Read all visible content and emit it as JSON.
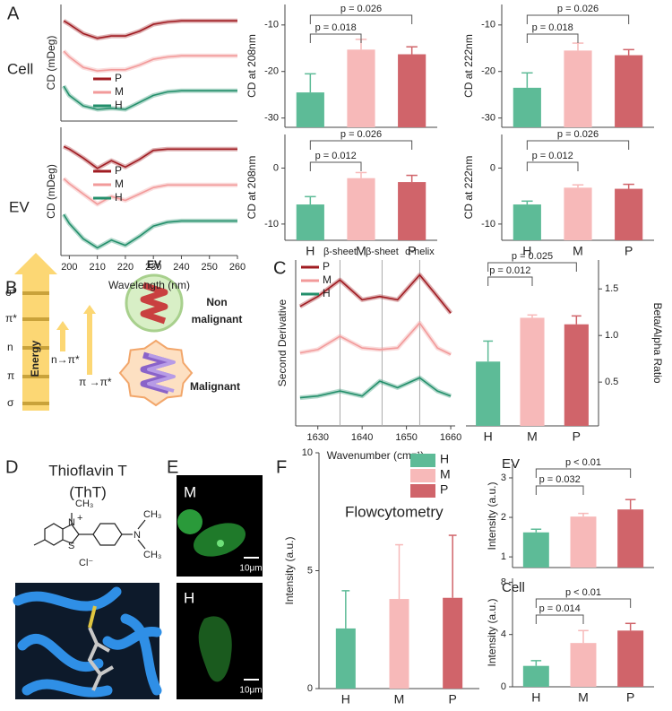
{
  "figure": {
    "panel_labels": [
      "A",
      "B",
      "C",
      "D",
      "E",
      "F"
    ],
    "row_labels": [
      "Cell",
      "EV"
    ],
    "energy": {
      "title": "Energy",
      "levels": [
        "σ*",
        "π*",
        "n",
        "π",
        "σ"
      ],
      "transitions": [
        "n→π*",
        "π →π*"
      ]
    },
    "ev_diagram": {
      "title": "EV",
      "non_malignant": [
        "Non",
        "malignant"
      ],
      "malignant": "Malignant"
    },
    "tht": {
      "name": "Thioflavin T",
      "abbr": "(ThT)",
      "atoms": [
        "CH₃",
        "N",
        "+",
        "S",
        "Cl⁻",
        "N",
        "CH₃",
        "CH₃"
      ]
    },
    "micrographs": [
      {
        "label": "M",
        "scale": "10μm"
      },
      {
        "label": "H",
        "scale": "10μm"
      }
    ]
  },
  "chart_data": [
    {
      "type": "line",
      "ylabel": "CD (mDeg)",
      "legend": "center left",
      "x": [
        198,
        200,
        205,
        210,
        215,
        220,
        225,
        230,
        235,
        240,
        245,
        250,
        255,
        260
      ],
      "xlim": [
        197,
        260
      ],
      "ylim": [
        0,
        10
      ],
      "series": [
        {
          "name": "P",
          "color": "#a01c22",
          "values": [
            8.6,
            8.3,
            7.5,
            7.1,
            7.3,
            7.3,
            7.7,
            8.3,
            8.5,
            8.6,
            8.6,
            8.6,
            8.6,
            8.6
          ]
        },
        {
          "name": "M",
          "color": "#f29a9a",
          "values": [
            6.0,
            5.5,
            4.6,
            4.3,
            4.4,
            4.4,
            4.8,
            5.3,
            5.5,
            5.6,
            5.6,
            5.6,
            5.6,
            5.6
          ]
        },
        {
          "name": "H",
          "color": "#238f6b",
          "values": [
            3.0,
            2.2,
            1.3,
            1.0,
            1.1,
            1.0,
            1.6,
            2.2,
            2.5,
            2.6,
            2.6,
            2.6,
            2.6,
            2.6
          ]
        }
      ]
    },
    {
      "type": "line",
      "ylabel": "CD (mDeg)",
      "xlabel": "Wavelength (nm)",
      "legend": "center left",
      "x": [
        198,
        200,
        205,
        210,
        215,
        220,
        225,
        230,
        235,
        240,
        245,
        250,
        255,
        260
      ],
      "xlim": [
        197,
        260
      ],
      "ylim": [
        0,
        10
      ],
      "xticks": [
        200,
        210,
        220,
        230,
        240,
        250,
        260
      ],
      "series": [
        {
          "name": "P",
          "color": "#a01c22",
          "values": [
            8.5,
            8.3,
            7.6,
            6.8,
            7.4,
            6.9,
            7.5,
            8.2,
            8.3,
            8.3,
            8.3,
            8.3,
            8.3,
            8.3
          ]
        },
        {
          "name": "M",
          "color": "#f29a9a",
          "values": [
            6.0,
            5.6,
            4.8,
            4.0,
            4.6,
            4.3,
            4.8,
            5.3,
            5.5,
            5.5,
            5.5,
            5.5,
            5.5,
            5.5
          ]
        },
        {
          "name": "H",
          "color": "#238f6b",
          "values": [
            3.2,
            2.5,
            1.3,
            0.6,
            1.2,
            0.8,
            1.5,
            2.3,
            2.6,
            2.7,
            2.7,
            2.7,
            2.7,
            2.7
          ]
        }
      ]
    },
    {
      "type": "bar",
      "ylabel": "CD at 208nm",
      "ylim": [
        -32,
        -5.6
      ],
      "yticks": [
        -30,
        -20,
        -10
      ],
      "values": [
        -24.5,
        -15.3,
        -16.3
      ],
      "errors": [
        4,
        2.2,
        1.6
      ],
      "colors": [
        "#5dbb97",
        "#f7b9b9",
        "#d0646a"
      ],
      "annotations": [
        {
          "text": "p = 0.018",
          "between": [
            0,
            1
          ]
        },
        {
          "text": "p = 0.026",
          "between": [
            0,
            2
          ]
        }
      ]
    },
    {
      "type": "bar",
      "ylabel": "CD at 222nm",
      "ylim": [
        -32,
        -5.6
      ],
      "yticks": [
        -30,
        -20,
        -10
      ],
      "values": [
        -23.5,
        -15.5,
        -16.5
      ],
      "errors": [
        3.2,
        1.6,
        1.2
      ],
      "colors": [
        "#5dbb97",
        "#f7b9b9",
        "#d0646a"
      ],
      "annotations": [
        {
          "text": "p = 0.018",
          "between": [
            0,
            1
          ]
        },
        {
          "text": "p = 0.026",
          "between": [
            0,
            2
          ]
        }
      ]
    },
    {
      "type": "bar",
      "ylabel": "CD at 208nm",
      "ylim": [
        -12.9,
        6
      ],
      "yticks": [
        -10,
        0
      ],
      "categories": [
        "H",
        "M",
        "P"
      ],
      "values": [
        -6.5,
        -1.8,
        -2.5
      ],
      "errors": [
        1.4,
        1.0,
        1.2
      ],
      "colors": [
        "#5dbb97",
        "#f7b9b9",
        "#d0646a"
      ],
      "annotations": [
        {
          "text": "p = 0.012",
          "between": [
            0,
            1
          ]
        },
        {
          "text": "p = 0.026",
          "between": [
            0,
            2
          ]
        }
      ]
    },
    {
      "type": "bar",
      "ylabel": "CD at 222nm",
      "ylim": [
        -12.9,
        6
      ],
      "yticks": [
        -10,
        0
      ],
      "categories": [
        "H",
        "M",
        "P"
      ],
      "values": [
        -6.5,
        -3.5,
        -3.7
      ],
      "errors": [
        0.6,
        0.5,
        0.8
      ],
      "colors": [
        "#5dbb97",
        "#f7b9b9",
        "#d0646a"
      ],
      "annotations": [
        {
          "text": "p = 0.012",
          "between": [
            0,
            1
          ]
        },
        {
          "text": "p = 0.026",
          "between": [
            0,
            2
          ]
        }
      ]
    },
    {
      "type": "line",
      "ylabel": "Second Derivative",
      "xlabel": "Wavenumber (cm⁻¹)",
      "legend": "upper left",
      "x": [
        1626,
        1630,
        1635,
        1640,
        1644,
        1648,
        1653,
        1657,
        1660
      ],
      "xlim": [
        1625,
        1661
      ],
      "ylim": [
        0,
        10
      ],
      "xticks": [
        1630,
        1640,
        1650,
        1660
      ],
      "annotations": [
        {
          "text": "β-sheet",
          "x": 1635
        },
        {
          "text": "β-sheet",
          "x": 1644.5
        },
        {
          "text": "α-helix",
          "x": 1653
        }
      ],
      "series": [
        {
          "name": "P",
          "color": "#a01c22",
          "values": [
            7.2,
            7.8,
            8.8,
            7.6,
            7.8,
            7.6,
            9.1,
            7.8,
            6.8
          ]
        },
        {
          "name": "M",
          "color": "#f29a9a",
          "values": [
            4.4,
            4.6,
            5.4,
            4.7,
            4.6,
            4.7,
            6.2,
            4.7,
            4.3
          ]
        },
        {
          "name": "H",
          "color": "#238f6b",
          "values": [
            1.7,
            1.8,
            2.1,
            1.8,
            2.7,
            2.3,
            2.9,
            2.1,
            1.8
          ]
        }
      ]
    },
    {
      "type": "bar",
      "ylabel": "Beta/Alpha Ratio",
      "yaxis": "right",
      "ylim": [
        0.03,
        1.81
      ],
      "yticks": [
        0.5,
        {
          "value": 1,
          "label": "1.0"
        },
        1.5
      ],
      "categories": [
        "H",
        "M",
        "P"
      ],
      "values": [
        0.72,
        1.19,
        1.12
      ],
      "errors": [
        0.22,
        0.03,
        0.09
      ],
      "colors": [
        "#5dbb97",
        "#f7b9b9",
        "#d0646a"
      ],
      "annotations": [
        {
          "text": "p = 0.012",
          "between": [
            0,
            1
          ]
        },
        {
          "text": "p = 0.025",
          "between": [
            0,
            2
          ]
        }
      ]
    },
    {
      "type": "bar",
      "title": "Flowcytometry",
      "ylabel": "Intensity (a.u.)",
      "ylim": [
        0,
        10
      ],
      "yticks": [
        0,
        5,
        10
      ],
      "categories": [
        "H",
        "M",
        "P"
      ],
      "legend": "upper right",
      "values": [
        2.55,
        3.8,
        3.85
      ],
      "errors": [
        1.6,
        2.3,
        2.65
      ],
      "colors": [
        "#5dbb97",
        "#f7b9b9",
        "#d0646a"
      ]
    },
    {
      "type": "bar",
      "title": "EV",
      "ylabel": "Intensity (a.u.)",
      "ylim": [
        0.73,
        3.34
      ],
      "yticks": [
        1,
        2,
        3
      ],
      "values": [
        1.62,
        2.02,
        2.2
      ],
      "errors": [
        0.08,
        0.08,
        0.25
      ],
      "colors": [
        "#5dbb97",
        "#f7b9b9",
        "#d0646a"
      ],
      "annotations": [
        {
          "text": "p = 0.032",
          "between": [
            0,
            1
          ]
        },
        {
          "text": "p < 0.01",
          "between": [
            0,
            2
          ]
        }
      ]
    },
    {
      "type": "bar",
      "title": "Cell",
      "ylabel": "Intensity (a.u.)",
      "ylim": [
        0,
        8.3
      ],
      "yticks": [
        0,
        4,
        8
      ],
      "categories": [
        "H",
        "M",
        "P"
      ],
      "values": [
        1.6,
        3.35,
        4.3
      ],
      "errors": [
        0.4,
        0.95,
        0.55
      ],
      "colors": [
        "#5dbb97",
        "#f7b9b9",
        "#d0646a"
      ],
      "annotations": [
        {
          "text": "p = 0.014",
          "between": [
            0,
            1
          ]
        },
        {
          "text": "p < 0.01",
          "between": [
            0,
            2
          ]
        }
      ]
    }
  ]
}
